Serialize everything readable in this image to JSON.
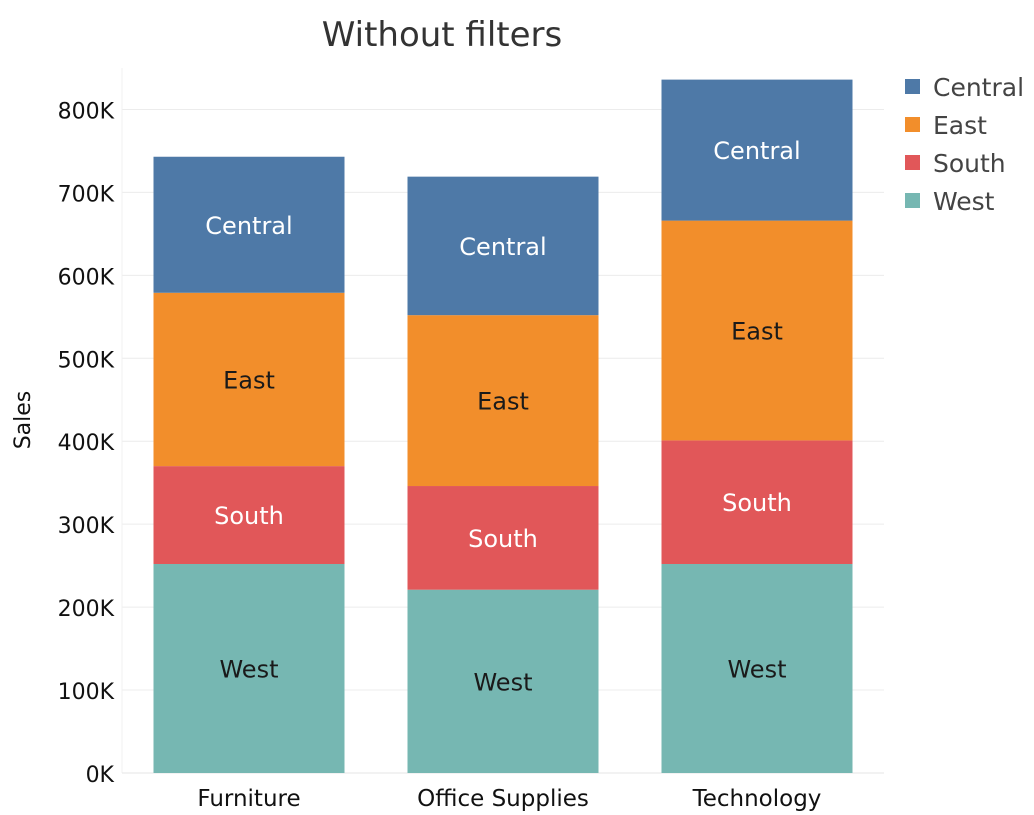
{
  "chart_data": {
    "type": "bar",
    "stacked": true,
    "title": "Without filters",
    "xlabel": "",
    "ylabel": "Sales",
    "ylim": [
      0,
      850000
    ],
    "y_ticks": [
      0,
      100000,
      200000,
      300000,
      400000,
      500000,
      600000,
      700000,
      800000
    ],
    "y_tick_labels": [
      "0K",
      "100K",
      "200K",
      "300K",
      "400K",
      "500K",
      "600K",
      "700K",
      "800K"
    ],
    "categories": [
      "Furniture",
      "Office Supplies",
      "Technology"
    ],
    "series": [
      {
        "name": "West",
        "color": "#76b7b2",
        "label_color": "#1a1a1a",
        "values": [
          252000,
          221000,
          252000
        ]
      },
      {
        "name": "South",
        "color": "#e15759",
        "label_color": "#ffffff",
        "values": [
          118000,
          125000,
          149000
        ]
      },
      {
        "name": "East",
        "color": "#f28e2b",
        "label_color": "#1a1a1a",
        "values": [
          209000,
          206000,
          265000
        ]
      },
      {
        "name": "Central",
        "color": "#4e79a7",
        "label_color": "#ffffff",
        "values": [
          164000,
          167000,
          170000
        ]
      }
    ],
    "legend": {
      "position": "top-right",
      "items": [
        "Central",
        "East",
        "South",
        "West"
      ]
    },
    "grid": true,
    "segment_labels": true
  }
}
